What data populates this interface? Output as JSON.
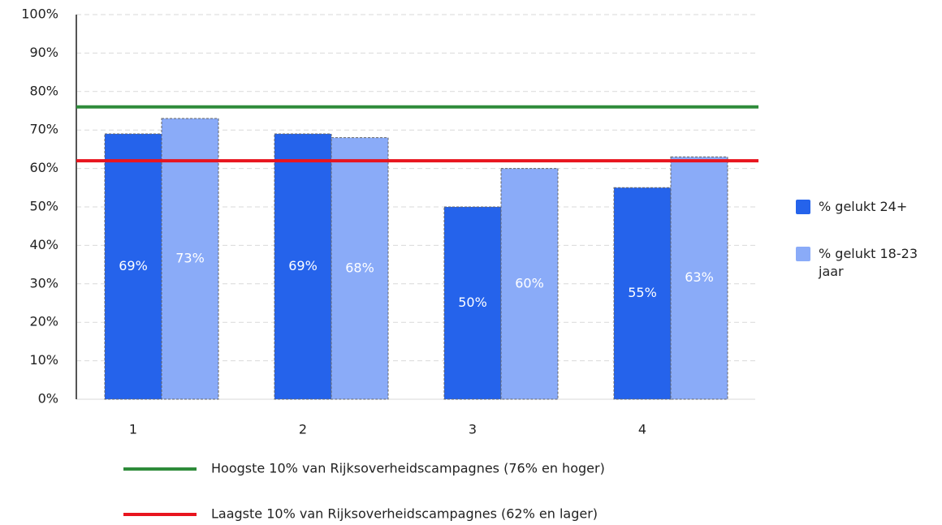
{
  "chart_data": {
    "type": "bar",
    "categories": [
      "1",
      "2",
      "3",
      "4"
    ],
    "series": [
      {
        "name": "% gelukt 24+",
        "color": "#2563eb",
        "values": [
          69,
          69,
          50,
          55
        ],
        "value_labels": [
          "69%",
          "69%",
          "50%",
          "55%"
        ]
      },
      {
        "name": "% gelukt 18-23 jaar",
        "color": "#8aabf8",
        "values": [
          73,
          68,
          60,
          63
        ],
        "value_labels": [
          "73%",
          "68%",
          "60%",
          "63%"
        ]
      }
    ],
    "reference_lines": [
      {
        "label": "Hoogste 10% van Rijksoverheidscampagnes (76% en hoger)",
        "value": 76,
        "color": "#2e8b3a"
      },
      {
        "label": "Laagste 10% van Rijksoverheidscampagnes (62% en lager)",
        "value": 62,
        "color": "#e8141e"
      }
    ],
    "ylim": [
      0,
      100
    ],
    "yticks": [
      {
        "value": 0,
        "label": "0%"
      },
      {
        "value": 10,
        "label": "10%"
      },
      {
        "value": 20,
        "label": "20%"
      },
      {
        "value": 30,
        "label": "30%"
      },
      {
        "value": 40,
        "label": "40%"
      },
      {
        "value": 50,
        "label": "50%"
      },
      {
        "value": 60,
        "label": "60%"
      },
      {
        "value": 70,
        "label": "70%"
      },
      {
        "value": 80,
        "label": "80%"
      },
      {
        "value": 90,
        "label": "90%"
      },
      {
        "value": 100,
        "label": "100%"
      }
    ],
    "grid": true
  }
}
